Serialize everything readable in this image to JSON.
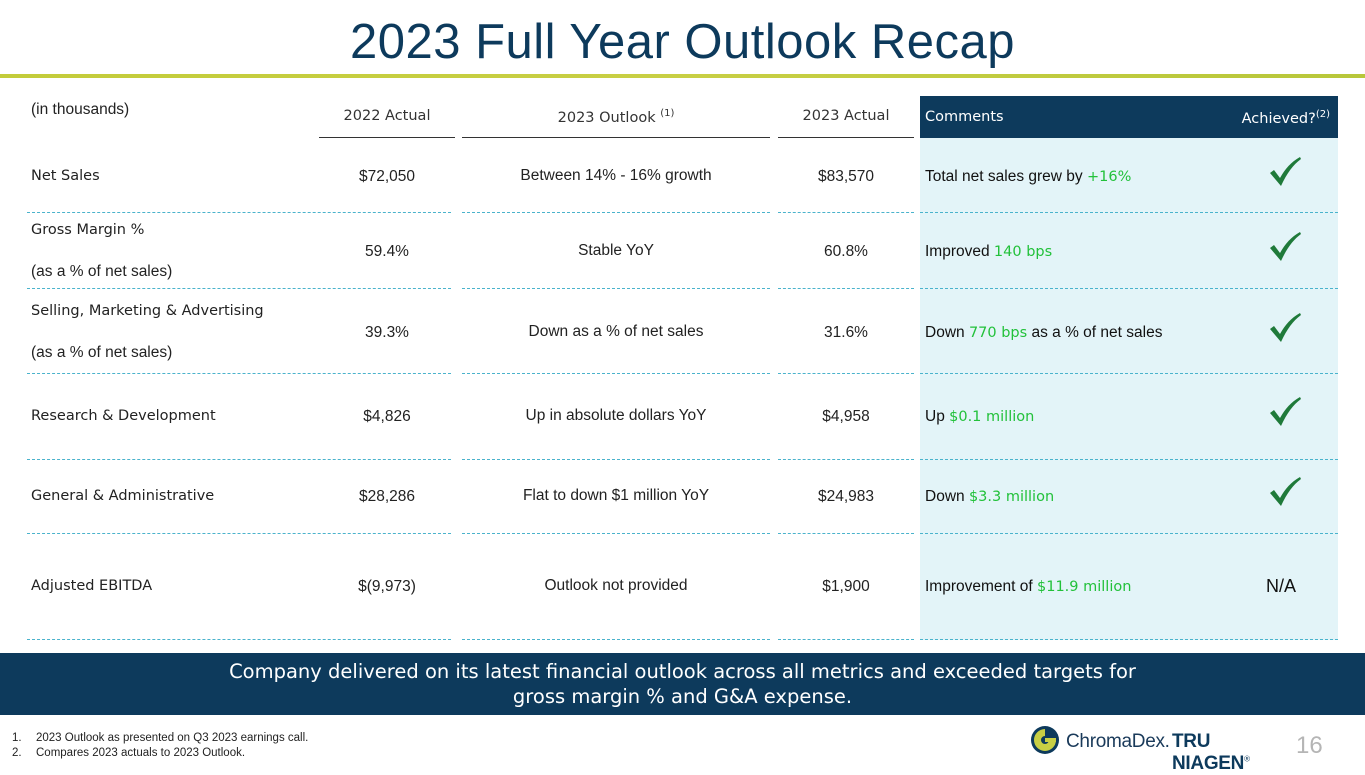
{
  "title": "2023 Full Year Outlook Recap",
  "unit_note": "(in thousands)",
  "columns": {
    "actual_2022": "2022 Actual",
    "outlook_2023": "2023 Outlook",
    "outlook_2023_sup": "(1)",
    "actual_2023": "2023 Actual",
    "comments": "Comments",
    "achieved": "Achieved?",
    "achieved_sup": "(2)"
  },
  "rows": [
    {
      "label": "Net Sales",
      "sublabel": "",
      "actual_2022": "$72,050",
      "outlook_2023": "Between 14% - 16% growth",
      "actual_2023": "$83,570",
      "comment_pre": "Total net sales grew by ",
      "comment_hl": "+16%",
      "comment_post": "",
      "achieved": "check",
      "achieved_text": ""
    },
    {
      "label": "Gross Margin %",
      "sublabel": "(as a % of net sales)",
      "actual_2022": "59.4%",
      "outlook_2023": "Stable YoY",
      "actual_2023": "60.8%",
      "comment_pre": "Improved ",
      "comment_hl": "140 bps",
      "comment_post": "",
      "achieved": "check",
      "achieved_text": ""
    },
    {
      "label": "Selling, Marketing & Advertising",
      "sublabel": "(as a % of net sales)",
      "actual_2022": "39.3%",
      "outlook_2023": "Down as a % of net sales",
      "actual_2023": "31.6%",
      "comment_pre": "Down ",
      "comment_hl": "770 bps",
      "comment_post": " as a % of net sales",
      "achieved": "check",
      "achieved_text": ""
    },
    {
      "label": "Research & Development",
      "sublabel": "",
      "actual_2022": "$4,826",
      "outlook_2023": "Up in absolute dollars YoY",
      "actual_2023": "$4,958",
      "comment_pre": "Up ",
      "comment_hl": "$0.1 million",
      "comment_post": "",
      "achieved": "check",
      "achieved_text": ""
    },
    {
      "label": "General & Administrative",
      "sublabel": "",
      "actual_2022": "$28,286",
      "outlook_2023": "Flat to down $1 million YoY",
      "actual_2023": "$24,983",
      "comment_pre": "Down ",
      "comment_hl": "$3.3 million",
      "comment_post": "",
      "achieved": "check",
      "achieved_text": ""
    },
    {
      "label": "Adjusted EBITDA",
      "sublabel": "",
      "actual_2022": "$(9,973)",
      "outlook_2023": "Outlook not provided",
      "actual_2023": "$1,900",
      "comment_pre": "Improvement of ",
      "comment_hl": "$11.9 million",
      "comment_post": "",
      "achieved": "text",
      "achieved_text": "N/A"
    }
  ],
  "banner": {
    "line1": "Company delivered on its latest financial outlook across all metrics and exceeded targets for",
    "line2": "gross margin % and G&A expense."
  },
  "footnotes": [
    {
      "num": "1.",
      "text": "2023 Outlook as presented on Q3 2023 earnings call."
    },
    {
      "num": "2.",
      "text": "Compares 2023 actuals to 2023 Outlook."
    }
  ],
  "logo": {
    "chromadex": "ChromaDex.",
    "tru_niagen": "TRU NIAGEN",
    "tm": "®"
  },
  "page_number": "16",
  "colors": {
    "navy": "#0d3a5c",
    "highlight": "#22c13a",
    "check": "#1f7a3a",
    "panel": "#e3f4f8",
    "dash": "#4ab3cc"
  }
}
